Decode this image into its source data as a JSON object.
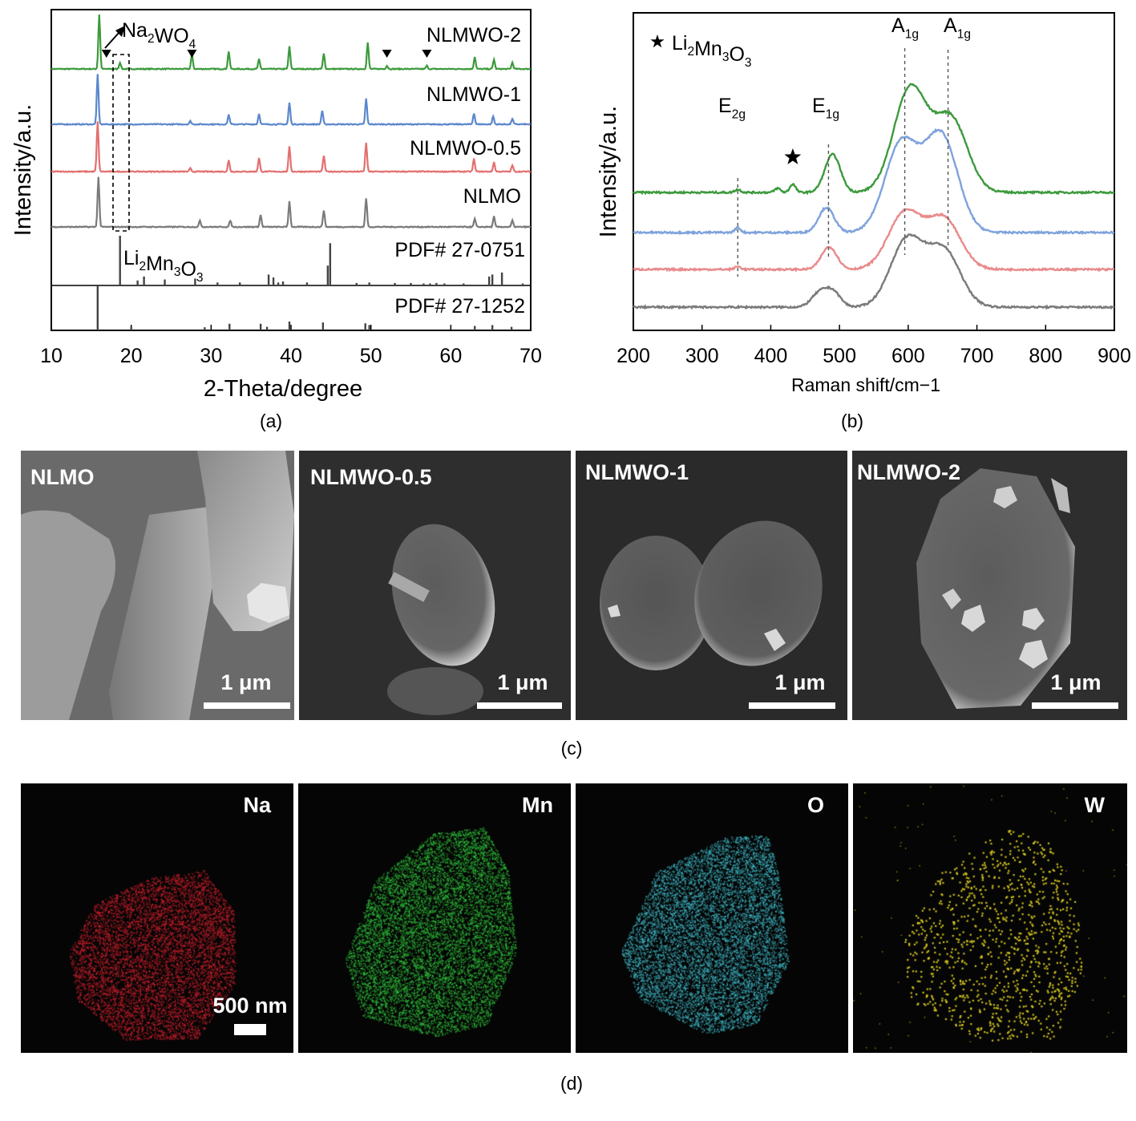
{
  "chart_data": [
    {
      "id": "a",
      "type": "line",
      "xlabel": "2-Theta/degree",
      "ylabel": "Intensity/a.u.",
      "xlim": [
        10,
        70
      ],
      "xticks": [
        10,
        20,
        30,
        40,
        50,
        60,
        70
      ],
      "xtick_labels": [
        "10",
        "20",
        "30",
        "40",
        "50",
        "60",
        "70"
      ],
      "series": [
        {
          "name": "NLMWO-2",
          "color": "#3c9a3c",
          "peaks": [
            [
              16.0,
              68
            ],
            [
              18.6,
              8
            ],
            [
              27.6,
              18
            ],
            [
              32.2,
              22
            ],
            [
              36.0,
              12
            ],
            [
              39.8,
              28
            ],
            [
              44.1,
              19
            ],
            [
              49.6,
              33
            ],
            [
              52.0,
              4
            ],
            [
              57.0,
              4
            ],
            [
              63.0,
              15
            ],
            [
              65.4,
              12
            ],
            [
              67.7,
              8
            ]
          ]
        },
        {
          "name": "NLMWO-1",
          "color": "#5b87cc",
          "peaks": [
            [
              15.8,
              62
            ],
            [
              27.4,
              4
            ],
            [
              32.2,
              12
            ],
            [
              36.0,
              13
            ],
            [
              39.8,
              27
            ],
            [
              43.9,
              17
            ],
            [
              49.4,
              32
            ],
            [
              62.9,
              14
            ],
            [
              65.3,
              10
            ],
            [
              67.7,
              7
            ]
          ]
        },
        {
          "name": "NLMWO-0.5",
          "color": "#e46f6f",
          "peaks": [
            [
              15.8,
              62
            ],
            [
              27.4,
              4
            ],
            [
              32.2,
              14
            ],
            [
              36.0,
              17
            ],
            [
              39.8,
              31
            ],
            [
              44.1,
              20
            ],
            [
              49.4,
              36
            ],
            [
              62.9,
              16
            ],
            [
              65.4,
              12
            ],
            [
              67.7,
              8
            ]
          ]
        },
        {
          "name": "NLMO",
          "color": "#7a7a7a",
          "peaks": [
            [
              15.9,
              62
            ],
            [
              28.6,
              8
            ],
            [
              32.4,
              8
            ],
            [
              36.2,
              15
            ],
            [
              39.8,
              32
            ],
            [
              44.1,
              21
            ],
            [
              49.4,
              36
            ],
            [
              63.0,
              10
            ],
            [
              65.4,
              13
            ],
            [
              67.7,
              8
            ]
          ]
        }
      ],
      "reference_patterns": [
        {
          "label": "PDF# 27-0751",
          "phase_label": "Li2Mn3O3",
          "sticks": [
            [
              18.6,
              100
            ],
            [
              20.8,
              10
            ],
            [
              21.6,
              18
            ],
            [
              24.2,
              12
            ],
            [
              28.0,
              14
            ],
            [
              30.8,
              6
            ],
            [
              33.6,
              6
            ],
            [
              37.2,
              22
            ],
            [
              37.8,
              16
            ],
            [
              38.4,
              6
            ],
            [
              39.0,
              8
            ],
            [
              42.0,
              6
            ],
            [
              44.6,
              40
            ],
            [
              44.9,
              85
            ],
            [
              48.2,
              5
            ],
            [
              49.8,
              6
            ],
            [
              53.0,
              5
            ],
            [
              55.0,
              5
            ],
            [
              56.6,
              4
            ],
            [
              57.4,
              4
            ],
            [
              58.2,
              5
            ],
            [
              59.2,
              4
            ],
            [
              61.6,
              4
            ],
            [
              64.8,
              18
            ],
            [
              65.2,
              22
            ],
            [
              66.4,
              26
            ],
            [
              69.0,
              4
            ]
          ]
        },
        {
          "label": "PDF# 27-1252",
          "sticks": [
            [
              15.8,
              100
            ],
            [
              20.0,
              8
            ],
            [
              29.2,
              7
            ],
            [
              32.3,
              15
            ],
            [
              36.2,
              15
            ],
            [
              37.0,
              8
            ],
            [
              39.8,
              20
            ],
            [
              44.0,
              18
            ],
            [
              49.3,
              16
            ],
            [
              49.8,
              12
            ],
            [
              63.0,
              10
            ],
            [
              65.2,
              12
            ],
            [
              67.6,
              8
            ]
          ]
        }
      ],
      "annotations": [
        "Na2WO4"
      ],
      "marker_positions": [
        16.9,
        27.6,
        52.0,
        57.0
      ]
    },
    {
      "id": "b",
      "type": "line",
      "xlabel": "Raman shift/cm−1",
      "ylabel": "Intensity/a.u.",
      "xlim": [
        200,
        900
      ],
      "xticks": [
        200,
        300,
        400,
        500,
        600,
        700,
        800,
        900
      ],
      "xtick_labels": [
        "200",
        "300",
        "400",
        "500",
        "600",
        "700",
        "800",
        "900"
      ],
      "legend": "★ Li2Mn3O3",
      "peak_labels": [
        {
          "text": "E2g",
          "x": 352
        },
        {
          "text": "E1g",
          "x": 485
        },
        {
          "text": "A1g",
          "x": 595
        },
        {
          "text": "A1g",
          "x": 658
        }
      ],
      "series": [
        {
          "name": "NLMWO-2",
          "color": "#3c9a3c",
          "peaks": [
            [
              352,
              5
            ],
            [
              410,
              7
            ],
            [
              432,
              14
            ],
            [
              490,
              64
            ],
            [
              603,
              175
            ],
            [
              662,
              124
            ]
          ]
        },
        {
          "name": "NLMWO-1",
          "color": "#7ea2dc",
          "peaks": [
            [
              352,
              8
            ],
            [
              481,
              42
            ],
            [
              590,
              150
            ],
            [
              648,
              163
            ]
          ]
        },
        {
          "name": "NLMWO-0.5",
          "color": "#e88a8a",
          "peaks": [
            [
              352,
              5
            ],
            [
              485,
              38
            ],
            [
              595,
              95
            ],
            [
              652,
              85
            ]
          ]
        },
        {
          "name": "NLMO",
          "color": "#7a7a7a",
          "peaks": [
            [
              470,
              22
            ],
            [
              490,
              26
            ],
            [
              598,
              112
            ],
            [
              652,
              94
            ]
          ]
        }
      ]
    }
  ],
  "captions": {
    "a": "(a)",
    "b": "(b)",
    "c": "(c)",
    "d": "(d)"
  },
  "sem_panels": [
    {
      "label": "NLMO",
      "scale": "1 μm"
    },
    {
      "label": "NLMWO-0.5",
      "scale": "1 μm"
    },
    {
      "label": "NLMWO-1",
      "scale": "1 μm"
    },
    {
      "label": "NLMWO-2",
      "scale": "1 μm"
    }
  ],
  "maps": [
    {
      "label": "Na",
      "color": "#c8202c"
    },
    {
      "label": "Mn",
      "color": "#2fbf3a"
    },
    {
      "label": "O",
      "color": "#3fb6c4"
    },
    {
      "label": "W",
      "color": "#e0d020"
    }
  ],
  "map_scale": "500 nm"
}
